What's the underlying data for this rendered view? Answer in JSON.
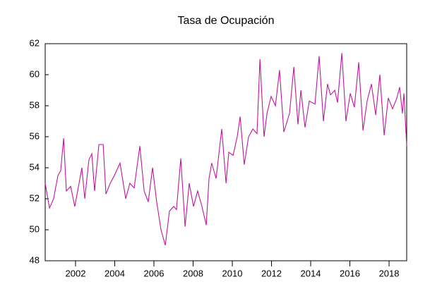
{
  "chart_data": {
    "type": "line",
    "title": "Tasa de Ocupación",
    "x": [
      2000.45,
      2000.67,
      2000.88,
      2001.1,
      2001.24,
      2001.39,
      2001.53,
      2001.75,
      2001.96,
      2002.18,
      2002.32,
      2002.47,
      2002.68,
      2002.83,
      2002.97,
      2003.19,
      2003.41,
      2003.55,
      2003.77,
      2003.98,
      2004.27,
      2004.56,
      2004.77,
      2004.99,
      2005.28,
      2005.5,
      2005.71,
      2005.93,
      2006.14,
      2006.36,
      2006.58,
      2006.79,
      2007.01,
      2007.15,
      2007.37,
      2007.59,
      2007.8,
      2008.02,
      2008.23,
      2008.45,
      2008.67,
      2008.81,
      2008.95,
      2009.17,
      2009.46,
      2009.68,
      2009.82,
      2010.04,
      2010.25,
      2010.4,
      2010.61,
      2010.83,
      2011.05,
      2011.26,
      2011.41,
      2011.62,
      2011.77,
      2011.98,
      2012.2,
      2012.41,
      2012.63,
      2012.92,
      2013.14,
      2013.35,
      2013.5,
      2013.71,
      2013.93,
      2014.22,
      2014.43,
      2014.65,
      2014.86,
      2015.01,
      2015.23,
      2015.37,
      2015.59,
      2015.8,
      2016.02,
      2016.23,
      2016.45,
      2016.67,
      2016.88,
      2017.1,
      2017.32,
      2017.53,
      2017.75,
      2017.96,
      2018.18,
      2018.4,
      2018.54,
      2018.68,
      2018.76,
      2018.9
    ],
    "series": [
      {
        "color": "#c0179b",
        "values": [
          53.0,
          51.4,
          52.0,
          53.5,
          53.8,
          55.9,
          52.5,
          52.8,
          51.5,
          53.0,
          54.0,
          52.0,
          54.5,
          54.9,
          52.5,
          55.5,
          55.5,
          52.3,
          53.0,
          53.5,
          54.3,
          52.0,
          53.0,
          52.7,
          55.4,
          52.5,
          51.8,
          54.0,
          51.8,
          50.0,
          49.0,
          51.2,
          51.5,
          51.3,
          54.6,
          50.2,
          53.0,
          51.5,
          52.5,
          51.5,
          50.3,
          53.3,
          54.3,
          53.3,
          56.5,
          53.0,
          55.0,
          54.8,
          56.0,
          57.3,
          54.2,
          56.0,
          56.5,
          56.2,
          61.0,
          56.0,
          57.5,
          58.6,
          58.0,
          60.3,
          56.3,
          57.5,
          60.5,
          56.8,
          59.0,
          56.6,
          58.3,
          58.1,
          61.2,
          57.0,
          59.4,
          58.7,
          59.0,
          58.2,
          61.4,
          57.0,
          58.8,
          57.9,
          60.8,
          56.4,
          58.3,
          59.4,
          57.4,
          60.0,
          56.1,
          58.5,
          57.8,
          58.5,
          59.2,
          57.5,
          58.8,
          55.4
        ]
      }
    ],
    "xlim": [
      2000.45,
      2018.9
    ],
    "xticks": [
      2002,
      2004,
      2006,
      2008,
      2010,
      2012,
      2014,
      2016,
      2018
    ],
    "ylim": [
      48,
      62
    ],
    "yticks": [
      48,
      50,
      52,
      54,
      56,
      58,
      60,
      62
    ],
    "grid": false
  }
}
